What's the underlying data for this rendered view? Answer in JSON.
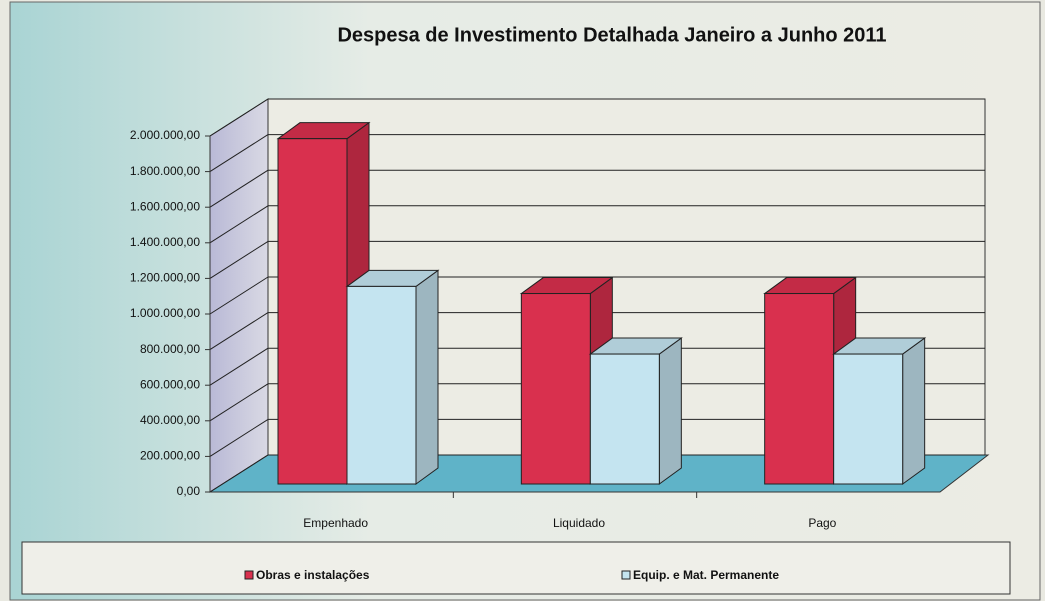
{
  "chart_data": {
    "type": "bar3d",
    "title": "Despesa de Investimento Detalhada Janeiro a Junho 2011",
    "categories": [
      "Empenhado",
      "Liquidado",
      "Pago"
    ],
    "series": [
      {
        "name": "Obras e instalações",
        "color": "#d9304e",
        "values": [
          1940000,
          1070000,
          1070000
        ]
      },
      {
        "name": "Equip. e Mat. Permanente",
        "color": "#c4e4f0",
        "values": [
          1110000,
          730000,
          730000
        ]
      }
    ],
    "ylim": [
      0,
      2000000
    ],
    "yticks": [
      {
        "value": 0,
        "label": "0,00"
      },
      {
        "value": 200000,
        "label": "200.000,00"
      },
      {
        "value": 400000,
        "label": "400.000,00"
      },
      {
        "value": 600000,
        "label": "600.000,00"
      },
      {
        "value": 800000,
        "label": "800.000,00"
      },
      {
        "value": 1000000,
        "label": "1.000.000,00"
      },
      {
        "value": 1200000,
        "label": "1.200.000,00"
      },
      {
        "value": 1400000,
        "label": "1.400.000,00"
      },
      {
        "value": 1600000,
        "label": "1.600.000,00"
      },
      {
        "value": 1800000,
        "label": "1.800.000,00"
      },
      {
        "value": 2000000,
        "label": "2.000.000,00"
      }
    ],
    "grid": true,
    "legend": "bottom"
  }
}
